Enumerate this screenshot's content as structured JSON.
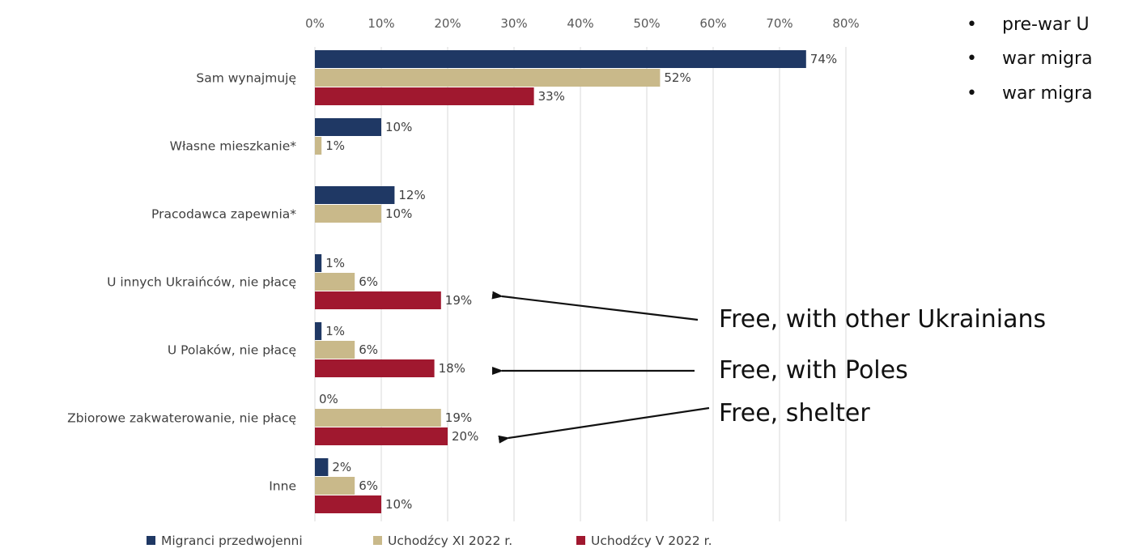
{
  "chart_data": {
    "type": "bar",
    "orientation": "horizontal",
    "categories": [
      "Sam wynajmuję",
      "Własne mieszkanie*",
      "Pracodawca zapewnia*",
      "U innych Ukraińców, nie płacę",
      "U Polaków, nie płacę",
      "Zbiorowe zakwaterowanie, nie płacę",
      "Inne"
    ],
    "series": [
      {
        "name": "Migranci przedwojenni",
        "color": "#1f3864",
        "values": [
          74,
          10,
          12,
          1,
          1,
          0,
          2
        ],
        "labels": [
          "74%",
          "10%",
          "12%",
          "1%",
          "1%",
          "0%",
          "2%"
        ]
      },
      {
        "name": "Uchodźcy XI 2022 r.",
        "color": "#c9b98a",
        "values": [
          52,
          1,
          10,
          6,
          6,
          19,
          6
        ],
        "labels": [
          "52%",
          "1%",
          "10%",
          "6%",
          "6%",
          "19%",
          "6%"
        ]
      },
      {
        "name": "Uchodźcy V 2022 r.",
        "color": "#a0182f",
        "values": [
          33,
          null,
          null,
          19,
          18,
          20,
          10
        ],
        "labels": [
          "33%",
          "",
          "",
          "19%",
          "18%",
          "20%",
          "10%"
        ]
      }
    ],
    "xlim": [
      0,
      80
    ],
    "xticks": [
      "0%",
      "10%",
      "20%",
      "30%",
      "40%",
      "50%",
      "60%",
      "70%",
      "80%"
    ],
    "grid": true,
    "legend_position": "bottom"
  },
  "annotations": [
    {
      "text": "Free, with other Ukrainians",
      "target_category": 3
    },
    {
      "text": "Free, with Poles",
      "target_category": 4
    },
    {
      "text": "Free, shelter",
      "target_category": 5
    }
  ],
  "bullets": [
    "pre-war U",
    "war migra",
    "war migra"
  ]
}
